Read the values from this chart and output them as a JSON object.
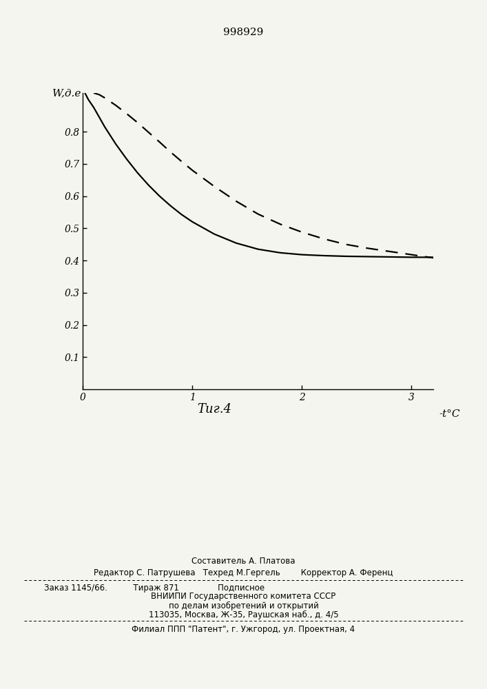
{
  "title": "998929",
  "xlabel": "-t°C",
  "ylabel": "W,д.е",
  "caption": "Τиг 4",
  "xlim": [
    0,
    3.2
  ],
  "ylim": [
    0,
    0.92
  ],
  "xticks": [
    0,
    1,
    2,
    3
  ],
  "yticks": [
    0.1,
    0.2,
    0.3,
    0.4,
    0.5,
    0.6,
    0.7,
    0.8
  ],
  "solid_x": [
    0.02,
    0.05,
    0.1,
    0.15,
    0.2,
    0.3,
    0.4,
    0.5,
    0.6,
    0.7,
    0.8,
    0.9,
    1.0,
    1.2,
    1.4,
    1.6,
    1.8,
    2.0,
    2.2,
    2.4,
    2.6,
    2.8,
    3.0,
    3.2
  ],
  "solid_y": [
    0.92,
    0.9,
    0.875,
    0.845,
    0.815,
    0.762,
    0.715,
    0.672,
    0.634,
    0.6,
    0.57,
    0.543,
    0.52,
    0.482,
    0.454,
    0.435,
    0.424,
    0.418,
    0.415,
    0.413,
    0.412,
    0.411,
    0.41,
    0.41
  ],
  "dashed_x": [
    0.1,
    0.15,
    0.2,
    0.3,
    0.4,
    0.5,
    0.6,
    0.7,
    0.8,
    0.9,
    1.0,
    1.2,
    1.4,
    1.6,
    1.8,
    2.0,
    2.2,
    2.4,
    2.6,
    2.8,
    3.0,
    3.2
  ],
  "dashed_y": [
    0.92,
    0.915,
    0.905,
    0.882,
    0.856,
    0.828,
    0.798,
    0.768,
    0.737,
    0.708,
    0.68,
    0.63,
    0.584,
    0.544,
    0.513,
    0.488,
    0.467,
    0.45,
    0.438,
    0.428,
    0.418,
    0.408
  ],
  "line_color": "#000000",
  "background_color": "#f5f5f0",
  "footer_line1": "Составитель А. Платова",
  "footer_line2": "Редактор С. Патрушева   Техред М.Гергель        Корректор А. Ференц",
  "footer_line3": "Заказ 1145/66.          Тираж 871               Подписное",
  "footer_line4": "ВНИИПИ Государственного комитета СССР",
  "footer_line5": "по делам изобретений и открытий",
  "footer_line6": "113035, Москва, Ж-35, Раушская наб., д. 4/5",
  "footer_line7": "Филиал ППП \"Патент\", г. Ужгород, ул. Проектная, 4"
}
